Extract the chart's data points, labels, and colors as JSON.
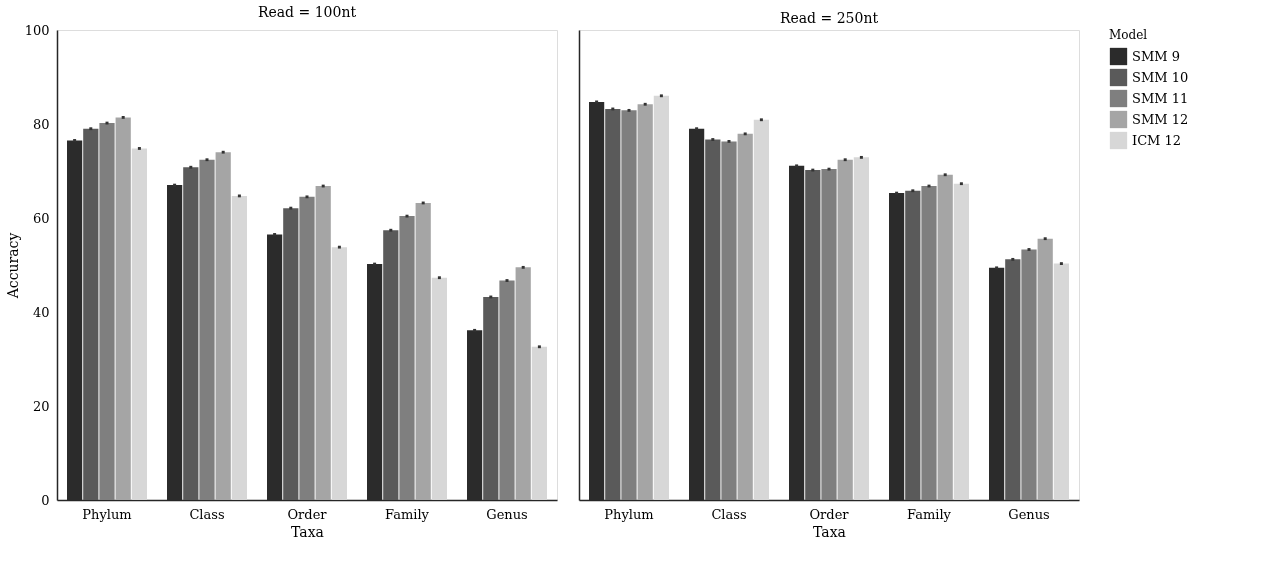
{
  "chart_data": [
    {
      "type": "bar",
      "title": "Read = 100nt",
      "xlabel": "Taxa",
      "ylabel": "Accuracy",
      "categories": [
        "Phylum",
        "Class",
        "Order",
        "Family",
        "Genus"
      ],
      "series": [
        {
          "color": "#2b2b2b",
          "values": [
            76.5,
            67.0,
            56.5,
            50.2,
            36.1
          ],
          "errors": [
            0.3,
            0.3,
            0.3,
            0.3,
            0.3
          ]
        },
        {
          "color": "#5a5a5a",
          "values": [
            79.0,
            70.8,
            62.1,
            57.4,
            43.2
          ],
          "errors": [
            0.3,
            0.3,
            0.3,
            0.3,
            0.3
          ]
        },
        {
          "color": "#7f7f7f",
          "values": [
            80.2,
            72.4,
            64.5,
            60.4,
            46.7
          ],
          "errors": [
            0.3,
            0.3,
            0.3,
            0.3,
            0.3
          ]
        },
        {
          "color": "#a5a5a5",
          "values": [
            81.4,
            74.0,
            66.8,
            63.2,
            49.5
          ],
          "errors": [
            0.3,
            0.3,
            0.3,
            0.3,
            0.3
          ]
        },
        {
          "color": "#d7d7d7",
          "values": [
            74.8,
            64.7,
            53.8,
            47.3,
            32.6
          ],
          "errors": [
            0.3,
            0.3,
            0.3,
            0.3,
            0.3
          ]
        }
      ],
      "ylim": [
        0,
        100
      ],
      "yticks": [
        0,
        20,
        40,
        60,
        80,
        100
      ],
      "grid": false,
      "legend": false
    },
    {
      "type": "bar",
      "title": "Read = 250nt",
      "xlabel": "Taxa",
      "legend_title": "Model",
      "categories": [
        "Phylum",
        "Class",
        "Order",
        "Family",
        "Genus"
      ],
      "series": [
        {
          "name": "SMM 9",
          "color": "#2b2b2b",
          "values": [
            84.7,
            79.0,
            71.1,
            65.3,
            49.4
          ],
          "errors": [
            0.3,
            0.3,
            0.3,
            0.3,
            0.3
          ]
        },
        {
          "name": "SMM 10",
          "color": "#5a5a5a",
          "values": [
            83.2,
            76.7,
            70.2,
            65.8,
            51.2
          ],
          "errors": [
            0.3,
            0.3,
            0.3,
            0.3,
            0.3
          ]
        },
        {
          "name": "SMM 11",
          "color": "#7f7f7f",
          "values": [
            82.9,
            76.3,
            70.4,
            66.8,
            53.3
          ],
          "errors": [
            0.3,
            0.3,
            0.3,
            0.3,
            0.3
          ]
        },
        {
          "name": "SMM 12",
          "color": "#a5a5a5",
          "values": [
            84.2,
            77.9,
            72.4,
            69.2,
            55.6
          ],
          "errors": [
            0.3,
            0.3,
            0.3,
            0.3,
            0.3
          ]
        },
        {
          "name": "ICM 12",
          "color": "#d7d7d7",
          "values": [
            86.0,
            80.9,
            72.9,
            67.3,
            50.3
          ],
          "errors": [
            0.3,
            0.3,
            0.3,
            0.3,
            0.3
          ]
        }
      ],
      "ylim": [
        0,
        100
      ],
      "yticks": [
        0,
        20,
        40,
        60,
        80,
        100
      ],
      "grid": false,
      "legend": "right",
      "tick_labels": "x"
    }
  ]
}
